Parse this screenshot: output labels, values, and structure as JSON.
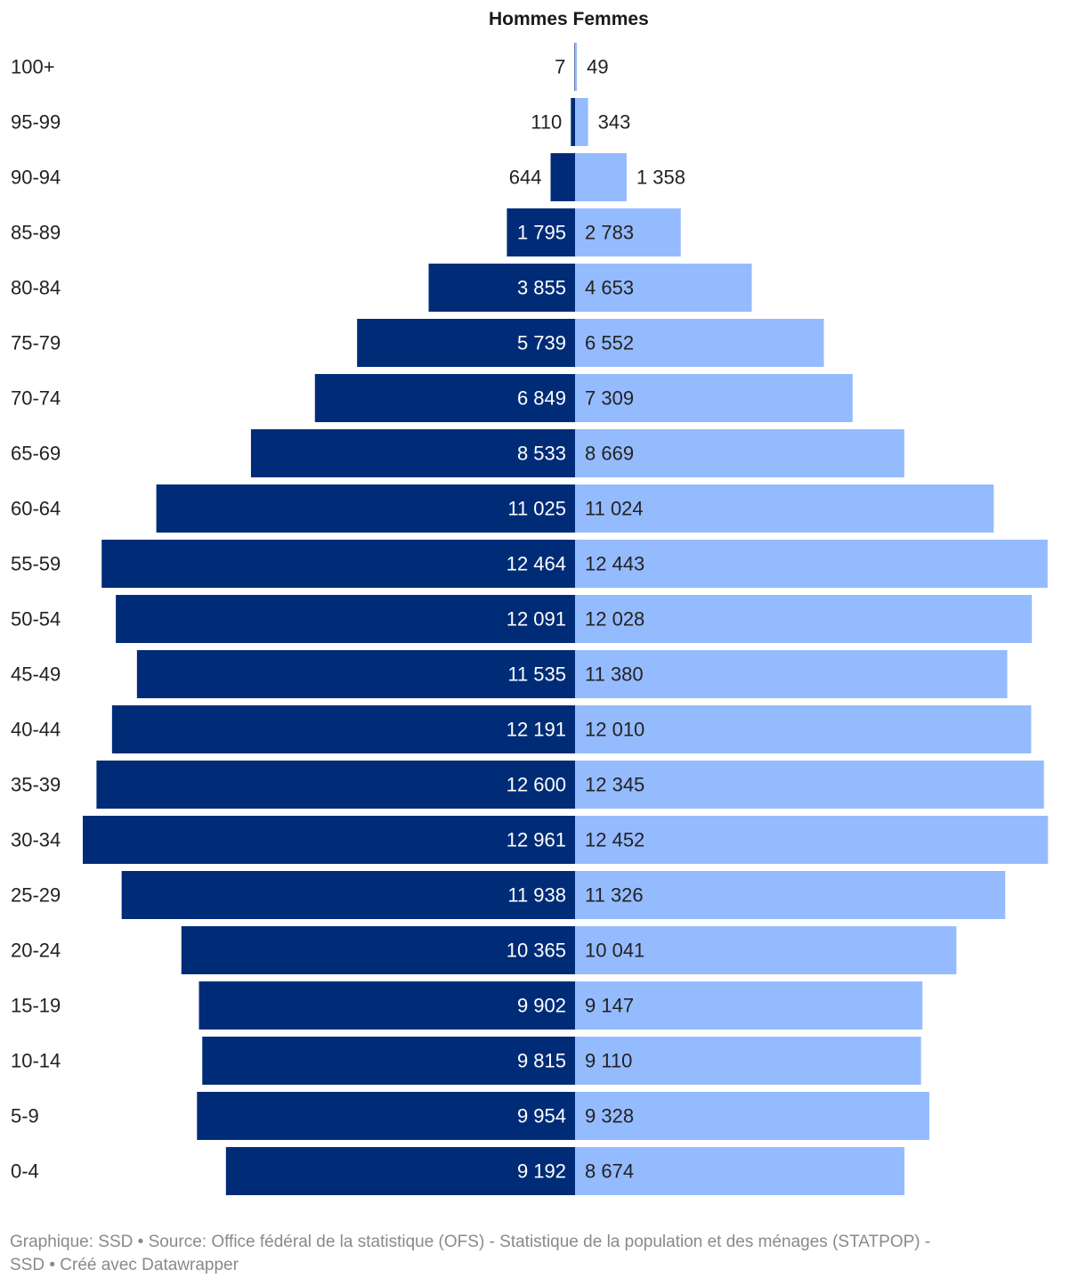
{
  "legend": {
    "men": "Hommes",
    "women": "Femmes"
  },
  "colors": {
    "men": "#002c77",
    "women": "#95bbff",
    "label_dark": "#222222",
    "label_light": "#ffffff"
  },
  "footer": {
    "line1": "Graphique: SSD • Source: Office fédéral de la statistique (OFS) - Statistique de la population et des ménages (STATPOP) -",
    "line2": "SSD • Créé avec Datawrapper"
  },
  "chart_data": {
    "type": "bar",
    "orientation": "horizontal-population-pyramid",
    "categories": [
      "100+",
      "95-99",
      "90-94",
      "85-89",
      "80-84",
      "75-79",
      "70-74",
      "65-69",
      "60-64",
      "55-59",
      "50-54",
      "45-49",
      "40-44",
      "35-39",
      "30-34",
      "25-29",
      "20-24",
      "15-19",
      "10-14",
      "5-9",
      "0-4"
    ],
    "series": [
      {
        "name": "Hommes",
        "values": [
          7,
          110,
          644,
          1795,
          3855,
          5739,
          6849,
          8533,
          11025,
          12464,
          12091,
          11535,
          12191,
          12600,
          12961,
          11938,
          10365,
          9902,
          9815,
          9954,
          9192
        ],
        "labels": [
          "7",
          "110",
          "644",
          "1 795",
          "3 855",
          "5 739",
          "6 849",
          "8 533",
          "11 025",
          "12 464",
          "12 091",
          "11 535",
          "12 191",
          "12 600",
          "12 961",
          "11 938",
          "10 365",
          "9 902",
          "9 815",
          "9 954",
          "9 192"
        ]
      },
      {
        "name": "Femmes",
        "values": [
          49,
          343,
          1358,
          2783,
          4653,
          6552,
          7309,
          8669,
          11024,
          12443,
          12028,
          11380,
          12010,
          12345,
          12452,
          11326,
          10041,
          9147,
          9110,
          9328,
          8674
        ],
        "labels": [
          "49",
          "343",
          "1 358",
          "2 783",
          "4 653",
          "6 552",
          "7 309",
          "8 669",
          "11 024",
          "12 443",
          "12 028",
          "11 380",
          "12 010",
          "12 345",
          "12 452",
          "11 326",
          "10 041",
          "9 147",
          "9 110",
          "9 328",
          "8 674"
        ]
      }
    ],
    "legend_position": "top-center",
    "grid": false
  }
}
